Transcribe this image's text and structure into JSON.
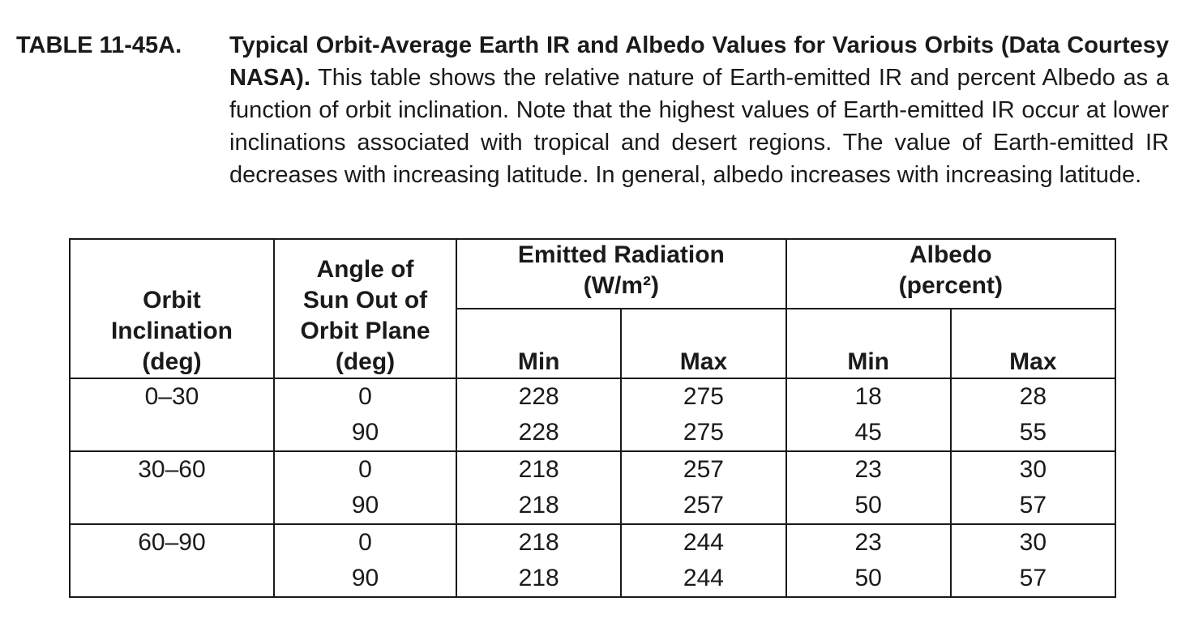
{
  "caption": {
    "label": "TABLE 11-45A.",
    "title": "Typical Orbit-Average Earth IR and Albedo Values for Various Orbits (Data Courtesy NASA).",
    "body": "This table shows the relative nature of Earth-emitted IR and percent Albedo as a function of orbit inclination. Note that the highest values of Earth-emitted IR occur at lower inclinations associated with tropical and desert regions. The value of Earth-emitted IR decreases with increasing latitude. In general, albedo increases with increasing latitude."
  },
  "table": {
    "headers": {
      "orbit_inclination": [
        "Orbit",
        "Inclination",
        "(deg)"
      ],
      "sun_angle": [
        "Angle of",
        "Sun Out of",
        "Orbit Plane",
        "(deg)"
      ],
      "emitted": [
        "Emitted Radiation",
        "(W/m²)"
      ],
      "albedo": [
        "Albedo",
        "(percent)"
      ],
      "min": "Min",
      "max": "Max"
    },
    "groups": [
      {
        "inclination": "0–30",
        "rows": [
          {
            "angle": "0",
            "em_min": "228",
            "em_max": "275",
            "al_min": "18",
            "al_max": "28"
          },
          {
            "angle": "90",
            "em_min": "228",
            "em_max": "275",
            "al_min": "45",
            "al_max": "55"
          }
        ]
      },
      {
        "inclination": "30–60",
        "rows": [
          {
            "angle": "0",
            "em_min": "218",
            "em_max": "257",
            "al_min": "23",
            "al_max": "30"
          },
          {
            "angle": "90",
            "em_min": "218",
            "em_max": "257",
            "al_min": "50",
            "al_max": "57"
          }
        ]
      },
      {
        "inclination": "60–90",
        "rows": [
          {
            "angle": "0",
            "em_min": "218",
            "em_max": "244",
            "al_min": "23",
            "al_max": "30"
          },
          {
            "angle": "90",
            "em_min": "218",
            "em_max": "244",
            "al_min": "50",
            "al_max": "57"
          }
        ]
      }
    ]
  }
}
